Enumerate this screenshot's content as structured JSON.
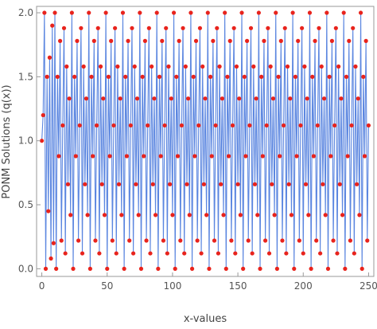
{
  "chart_data": {
    "type": "line",
    "title": "",
    "xlabel": "x-values",
    "ylabel": "PONM Solutions (q(x))",
    "xlim": [
      -4,
      254
    ],
    "ylim": [
      -0.06,
      2.05
    ],
    "x_ticks": [
      0,
      50,
      100,
      150,
      200,
      250
    ],
    "x_tick_labels": [
      "0",
      "50",
      "100",
      "150",
      "200",
      "250"
    ],
    "y_ticks": [
      0.0,
      0.5,
      1.0,
      1.5,
      2.0
    ],
    "y_tick_labels": [
      "0.0",
      "0.5",
      "1.0",
      "1.5",
      "2.0"
    ],
    "grid": false,
    "legend": "none",
    "series": [
      {
        "style": "line-with-markers",
        "x_start": 0,
        "x_end": 250,
        "x_step": 1,
        "values_first_10": [
          1.0,
          1.2,
          2.0,
          0.0,
          1.5,
          0.45,
          1.65,
          0.08,
          1.9,
          0.2
        ],
        "steady_state_levels": [
          0.0,
          0.12,
          0.22,
          0.42,
          0.66,
          0.88,
          1.12,
          1.33,
          1.5,
          1.58,
          1.78,
          1.88,
          2.0
        ],
        "line_color": "#5b86e0",
        "marker_color": "#e8231c"
      }
    ]
  }
}
